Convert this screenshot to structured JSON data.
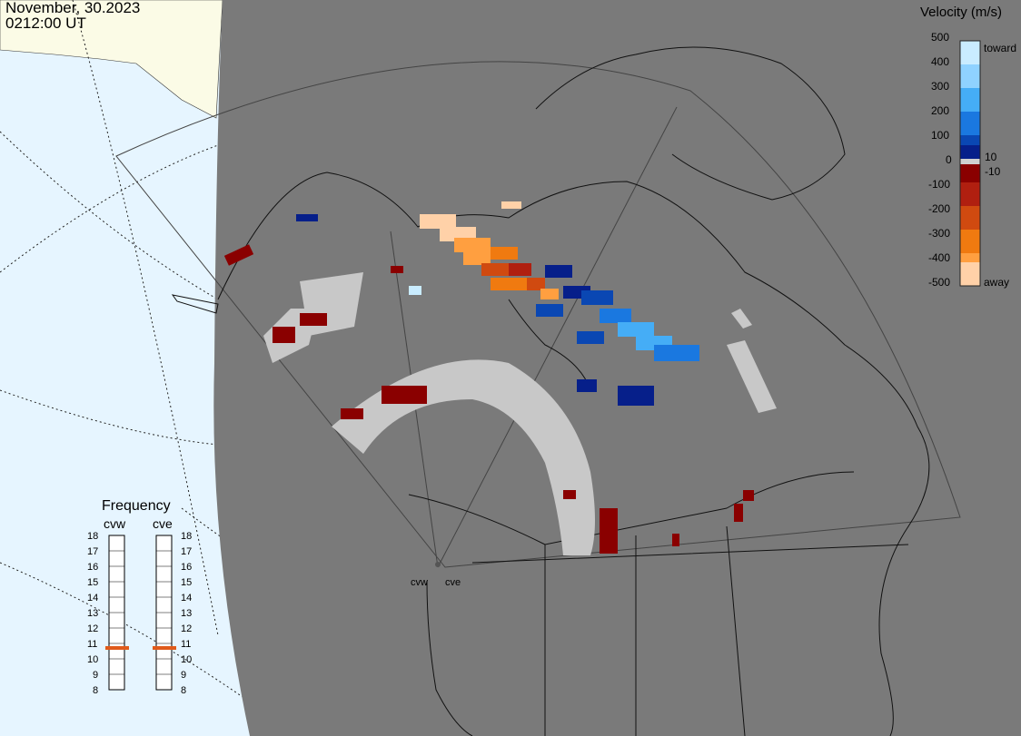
{
  "header": {
    "date": "November, 30.2023",
    "time": "0212:00 UT"
  },
  "colorbar": {
    "title": "Velocity (m/s)",
    "ticks": [
      "500",
      "400",
      "300",
      "200",
      "100",
      "0",
      "-100",
      "-200",
      "-300",
      "-400",
      "-500"
    ],
    "extra_ticks": [
      "10",
      "-10"
    ],
    "toward_label": "toward",
    "away_label": "away",
    "toward_colors": [
      "#c9ecff",
      "#8fd2ff",
      "#45adf6",
      "#1a78e0",
      "#0a47b3",
      "#061f8a"
    ],
    "away_colors": [
      "#8a0000",
      "#b01f10",
      "#d04a10",
      "#f07a10",
      "#ff9f40",
      "#ffd1a8"
    ]
  },
  "frequency": {
    "title": "Frequency",
    "sites": [
      "cvw",
      "cve"
    ],
    "scale": [
      "18",
      "17",
      "16",
      "15",
      "14",
      "13",
      "12",
      "11",
      "10",
      "9",
      "8"
    ],
    "values_mhz": [
      10.9,
      10.9
    ],
    "indicator_color": "#e05a1a"
  },
  "radars": {
    "labels": [
      "cvw",
      "cve"
    ]
  },
  "map_colors": {
    "ocean": "#e6f5ff",
    "land_out": "#fbfbe6",
    "fov_bg": "#7a7a7a",
    "ground_scatter": "#c8c8c8"
  }
}
